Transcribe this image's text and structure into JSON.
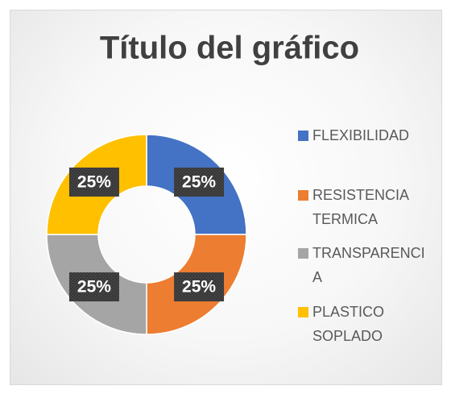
{
  "chart_data": {
    "type": "doughnut",
    "title": "Título del gráfico",
    "categories": [
      "FLEXIBILIDAD",
      "RESISTENCIA TERMICA",
      "TRANSPARENCIA",
      "PLASTICO SOPLADO"
    ],
    "values": [
      25,
      25,
      25,
      25
    ],
    "value_labels": [
      "25%",
      "25%",
      "25%",
      "25%"
    ],
    "colors": [
      "#4472c4",
      "#ed7d31",
      "#a5a5a5",
      "#ffc000"
    ],
    "legend": "right"
  }
}
